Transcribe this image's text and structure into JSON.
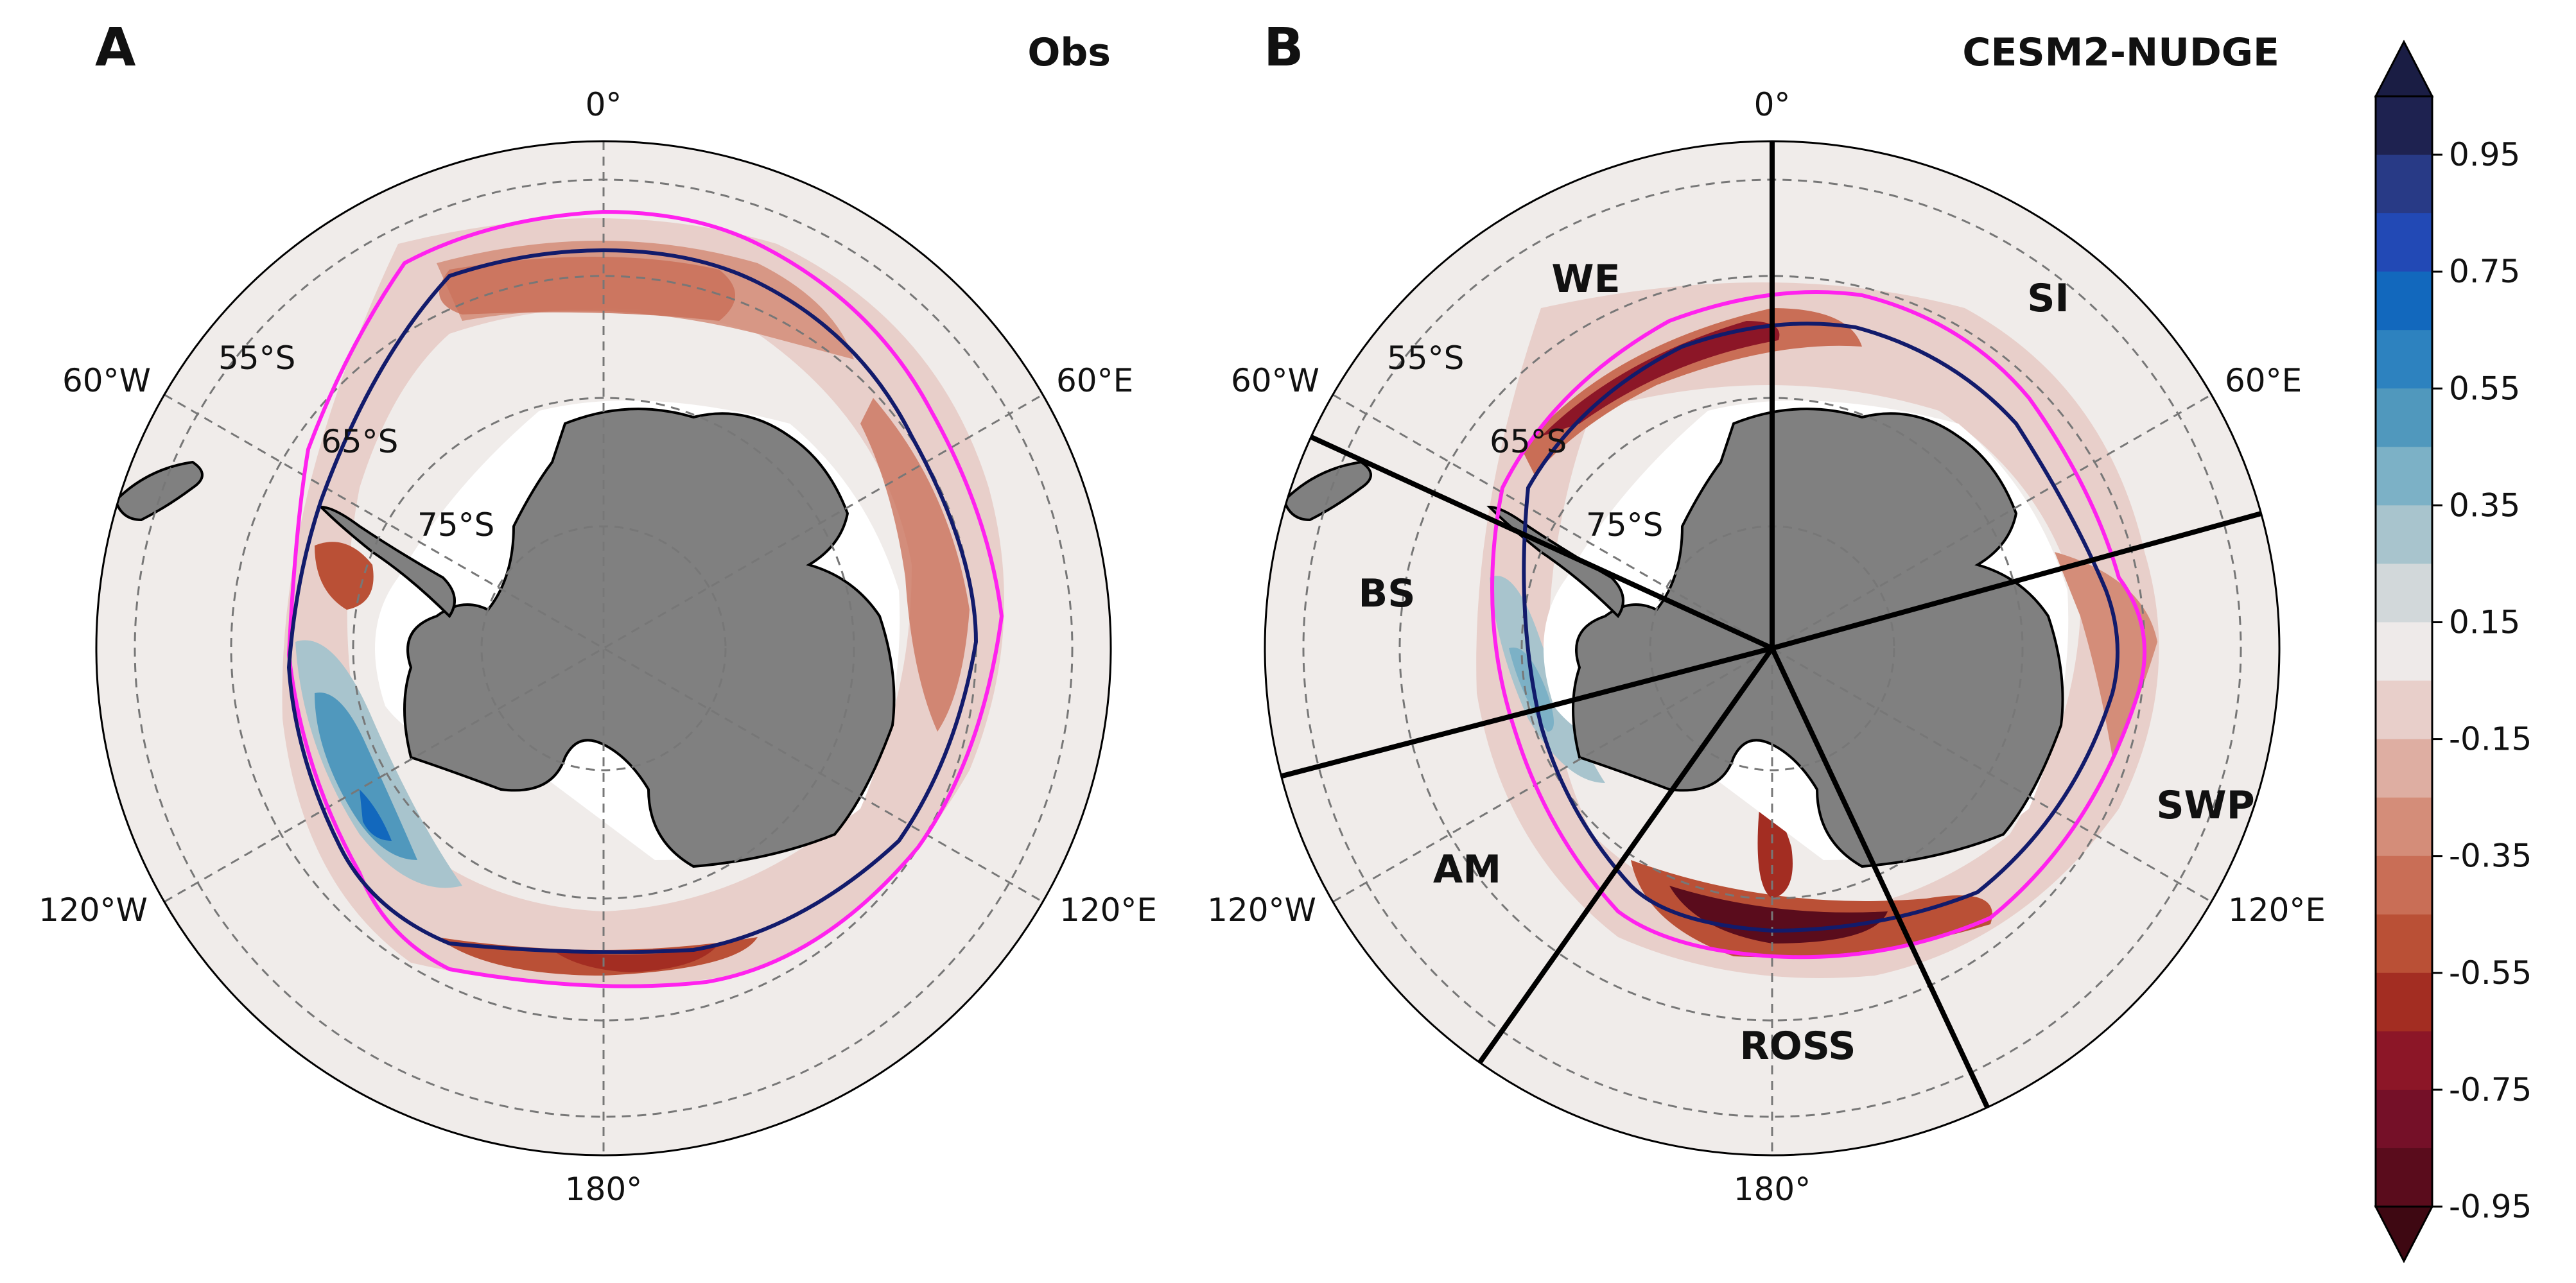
{
  "panels": [
    {
      "letter": "A",
      "title": "Obs",
      "lon_labels": [
        "0°",
        "60°E",
        "120°E",
        "180°",
        "120°W",
        "60°W"
      ],
      "lat_labels": [
        "55°S",
        "65°S",
        "75°S"
      ],
      "regions": []
    },
    {
      "letter": "B",
      "title": "CESM2-NUDGE",
      "lon_labels": [
        "0°",
        "60°E",
        "120°E",
        "180°",
        "120°W",
        "60°W"
      ],
      "lat_labels": [
        "55°S",
        "65°S",
        "75°S"
      ],
      "regions": [
        "WE",
        "SI",
        "SWP",
        "ROSS",
        "AM",
        "BS"
      ]
    }
  ],
  "colorbar": {
    "tick_labels": [
      "0.95",
      "0.75",
      "0.55",
      "0.35",
      "0.15",
      "-0.15",
      "-0.35",
      "-0.55",
      "-0.75",
      "-0.95"
    ],
    "range": [
      -0.95,
      0.95
    ],
    "extend": "both",
    "colors_top_to_bottom": [
      "#1e2250",
      "#283a86",
      "#2249b5",
      "#1268bd",
      "#2d82bf",
      "#5098bd",
      "#7cb1c6",
      "#a8c4cd",
      "#d2d8da",
      "#eeeae9",
      "#e8cfca",
      "#deaea2",
      "#d48d79",
      "#c96e56",
      "#ba5036",
      "#a32d22",
      "#8c1627",
      "#751028",
      "#5a0c1c"
    ],
    "arrow_top_color": "#1a1d44",
    "arrow_bottom_color": "#3e0812"
  },
  "colors": {
    "land": "#808080",
    "ocean_background": "#f0ecea",
    "magenta_contour": "#ff22ee",
    "navy_contour": "#121b6b"
  }
}
